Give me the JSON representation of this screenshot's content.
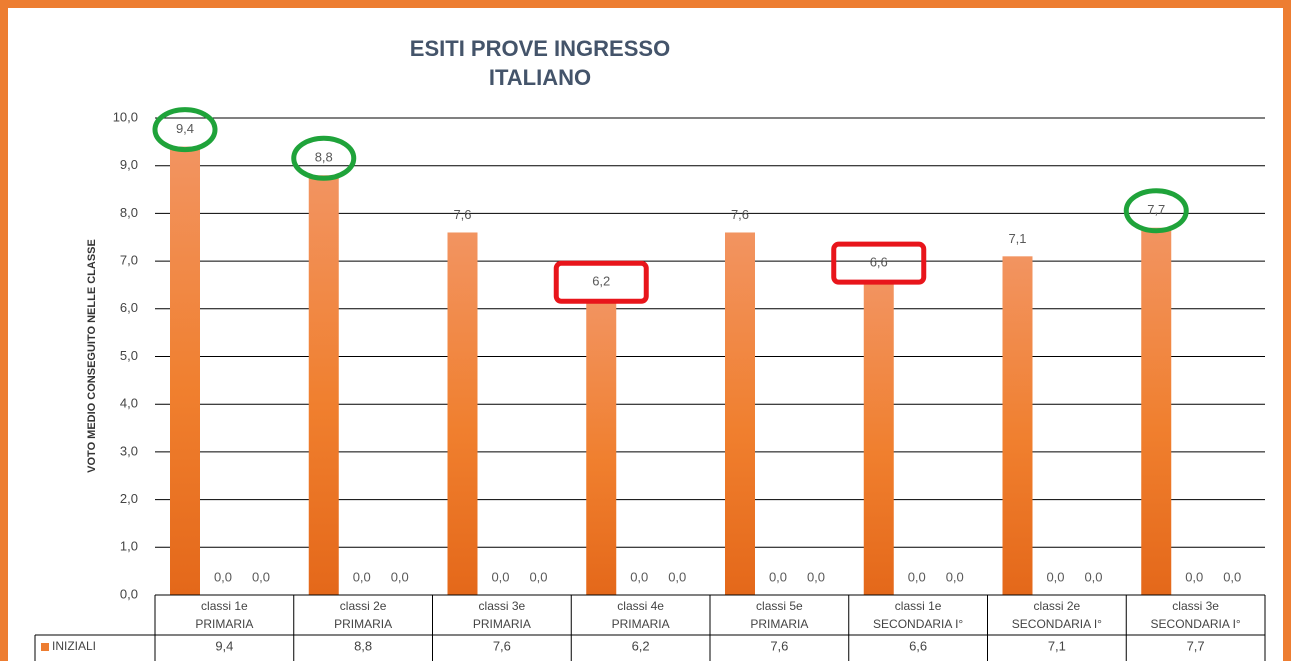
{
  "chart_data": {
    "type": "bar",
    "title": [
      "ESITI PROVE INGRESSO",
      "ITALIANO"
    ],
    "y_label": "VOTO MEDIO CONSEGUITO NELLE CLASSE",
    "categories": [
      [
        "classi 1e",
        "PRIMARIA"
      ],
      [
        "classi 2e",
        "PRIMARIA"
      ],
      [
        "classi 3e",
        "PRIMARIA"
      ],
      [
        "classi 4e",
        "PRIMARIA"
      ],
      [
        "classi 5e",
        "PRIMARIA"
      ],
      [
        "classi 1e",
        "SECONDARIA I°"
      ],
      [
        "classi 2e",
        "SECONDARIA I°"
      ],
      [
        "classi 3e",
        "SECONDARIA I°"
      ]
    ],
    "series": [
      {
        "name": "INIZIALI",
        "color": "#ed7d31",
        "values": [
          9.4,
          8.8,
          7.6,
          6.2,
          7.6,
          6.6,
          7.1,
          7.7
        ],
        "value_labels": [
          "9,4",
          "8,8",
          "7,6",
          "6,2",
          "7,6",
          "6,6",
          "7,1",
          "7,7"
        ]
      },
      {
        "color": "#ed7d31",
        "values": [
          0,
          0,
          0,
          0,
          0,
          0,
          0,
          0
        ],
        "value_labels": [
          "0,0",
          "0,0",
          "0,0",
          "0,0",
          "0,0",
          "0,0",
          "0,0",
          "0,0"
        ]
      },
      {
        "color": "#ed7d31",
        "values": [
          0,
          0,
          0,
          0,
          0,
          0,
          0,
          0
        ],
        "value_labels": [
          "0,0",
          "0,0",
          "0,0",
          "0,0",
          "0,0",
          "0,0",
          "0,0",
          "0,0"
        ]
      }
    ],
    "ylim": [
      0,
      10
    ],
    "yticks": [
      {
        "value": 0,
        "label": "0,0"
      },
      {
        "value": 1,
        "label": "1,0"
      },
      {
        "value": 2,
        "label": "2,0"
      },
      {
        "value": 3,
        "label": "3,0"
      },
      {
        "value": 4,
        "label": "4,0"
      },
      {
        "value": 5,
        "label": "5,0"
      },
      {
        "value": 6,
        "label": "6,0"
      },
      {
        "value": 7,
        "label": "7,0"
      },
      {
        "value": 8,
        "label": "8,0"
      },
      {
        "value": 9,
        "label": "9,0"
      },
      {
        "value": 10,
        "label": "10,0"
      }
    ],
    "grid": true,
    "data_table": true,
    "highlights": [
      {
        "index": 0,
        "shape": "ellipse",
        "color": "#1fa33a"
      },
      {
        "index": 1,
        "shape": "ellipse",
        "color": "#1fa33a"
      },
      {
        "index": 3,
        "shape": "rect",
        "color": "#e8151b"
      },
      {
        "index": 5,
        "shape": "rect",
        "color": "#e8151b"
      },
      {
        "index": 7,
        "shape": "ellipse",
        "color": "#1fa33a"
      }
    ]
  }
}
